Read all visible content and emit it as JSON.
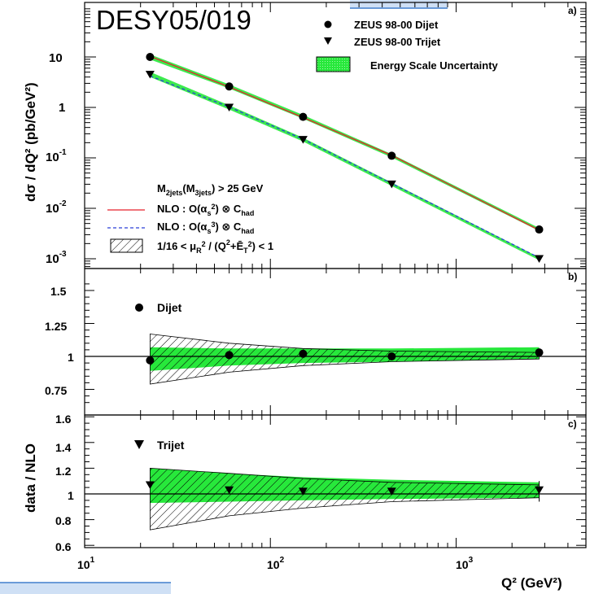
{
  "stamp": "DESY05/019",
  "colors": {
    "nlo_red": "#e8202a",
    "nlo_blue": "#2b3fd8",
    "uncertainty_green": "#27e83b",
    "hatch": "#000000"
  },
  "panel_a": {
    "label": "a)",
    "ylabel": "dσ / dQ² (pb/GeV²)",
    "legend": {
      "dijet": "ZEUS 98-00 Dijet",
      "trijet": "ZEUS 98-00 Trijet",
      "energy_scale": "Energy Scale Uncertainty"
    },
    "cut_text": "M2jets(M3jets) > 25 GeV",
    "nlo_as2_text": "NLO : O(αs²) ⊗ Chad",
    "nlo_as3_text": "NLO : O(αs³) ⊗ Chad",
    "scale_text": "1/16 < μR² / (Q²+ĒT²) < 1",
    "yticks": [
      "10⁻³",
      "10⁻²",
      "10⁻¹",
      "1",
      "10"
    ]
  },
  "panel_b": {
    "label": "b)",
    "series_label": "Dijet",
    "yticks": [
      "0.75",
      "1",
      "1.25",
      "1.5"
    ]
  },
  "panel_c": {
    "label": "c)",
    "series_label": "Trijet",
    "yticks": [
      "0.6",
      "0.8",
      "1",
      "1.2",
      "1.4",
      "1.6"
    ]
  },
  "shared_ylabel": "data / NLO",
  "xaxis": {
    "label": "Q² (GeV²)",
    "ticks": [
      "10¹",
      "10²",
      "10³"
    ]
  },
  "chart_data": [
    {
      "type": "scatter",
      "panel": "a",
      "yscale": "log",
      "xscale": "log",
      "xlim": [
        10,
        5000
      ],
      "ylim": [
        0.0006,
        40
      ],
      "x": [
        22.5,
        60,
        150,
        450,
        2800
      ],
      "series": [
        {
          "name": "ZEUS 98-00 Dijet",
          "values": [
            10.0,
            2.6,
            0.65,
            0.11,
            0.0038
          ]
        },
        {
          "name": "ZEUS 98-00 Trijet",
          "values": [
            4.5,
            1.0,
            0.23,
            0.03,
            0.001
          ]
        },
        {
          "name": "NLO : O(αs²) ⊗ Chad",
          "values": [
            10.3,
            2.55,
            0.63,
            0.112,
            0.0037
          ]
        },
        {
          "name": "NLO : O(αs³) ⊗ Chad",
          "values": [
            4.2,
            1.02,
            0.235,
            0.031,
            0.00105
          ]
        }
      ]
    },
    {
      "type": "scatter",
      "panel": "b",
      "xscale": "log",
      "xlim": [
        10,
        5000
      ],
      "ylim": [
        0.62,
        1.6
      ],
      "x": [
        22.5,
        60,
        150,
        450,
        2800
      ],
      "series": [
        {
          "name": "Dijet",
          "values": [
            0.97,
            1.01,
            1.02,
            1.0,
            1.03
          ]
        }
      ],
      "energy_scale_band": {
        "low": [
          0.89,
          0.93,
          0.95,
          0.96,
          0.98
        ],
        "high": [
          1.07,
          1.06,
          1.06,
          1.06,
          1.07
        ]
      },
      "scale_band": {
        "low": [
          0.79,
          0.88,
          0.93,
          0.96,
          0.98
        ],
        "high": [
          1.17,
          1.1,
          1.06,
          1.04,
          1.03
        ]
      }
    },
    {
      "type": "scatter",
      "panel": "c",
      "xscale": "log",
      "xlim": [
        10,
        5000
      ],
      "ylim": [
        0.6,
        1.6
      ],
      "x": [
        22.5,
        60,
        150,
        450,
        2800
      ],
      "series": [
        {
          "name": "Trijet",
          "values": [
            1.07,
            1.03,
            1.02,
            1.02,
            1.03
          ]
        }
      ],
      "energy_scale_band": {
        "low": [
          0.93,
          0.94,
          0.95,
          0.96,
          0.97
        ],
        "high": [
          1.2,
          1.16,
          1.13,
          1.11,
          1.09
        ]
      },
      "scale_band": {
        "low": [
          0.72,
          0.83,
          0.89,
          0.94,
          0.97
        ],
        "high": [
          1.2,
          1.16,
          1.12,
          1.09,
          1.07
        ]
      }
    }
  ]
}
